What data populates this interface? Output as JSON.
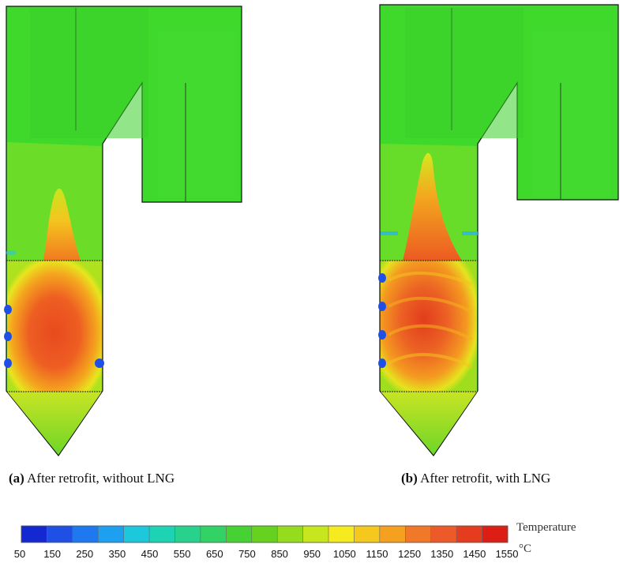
{
  "panels": [
    {
      "tag": "(a)",
      "caption": "After retrofit, without LNG"
    },
    {
      "tag": "(b)",
      "caption": "After retrofit, with LNG"
    }
  ],
  "colorbar": {
    "title": "Temperature",
    "unit": "°C",
    "ticks": [
      "50",
      "150",
      "250",
      "350",
      "450",
      "550",
      "650",
      "750",
      "850",
      "950",
      "1050",
      "1150",
      "1250",
      "1350",
      "1450",
      "1550"
    ],
    "colors": [
      "#1428d2",
      "#1e50e6",
      "#1e78f0",
      "#1ea0f0",
      "#1ec8dc",
      "#1ed2b4",
      "#28d28c",
      "#32d264",
      "#46d232",
      "#64d21e",
      "#96dc1e",
      "#c8e61e",
      "#f5eb1e",
      "#f5c81e",
      "#f5a01e",
      "#f07828",
      "#eb5a28",
      "#e63c1e",
      "#dc1e14"
    ],
    "range": [
      50,
      1550
    ]
  },
  "palette": {
    "boiler_green": "#3fd92c",
    "outline": "#111111"
  }
}
